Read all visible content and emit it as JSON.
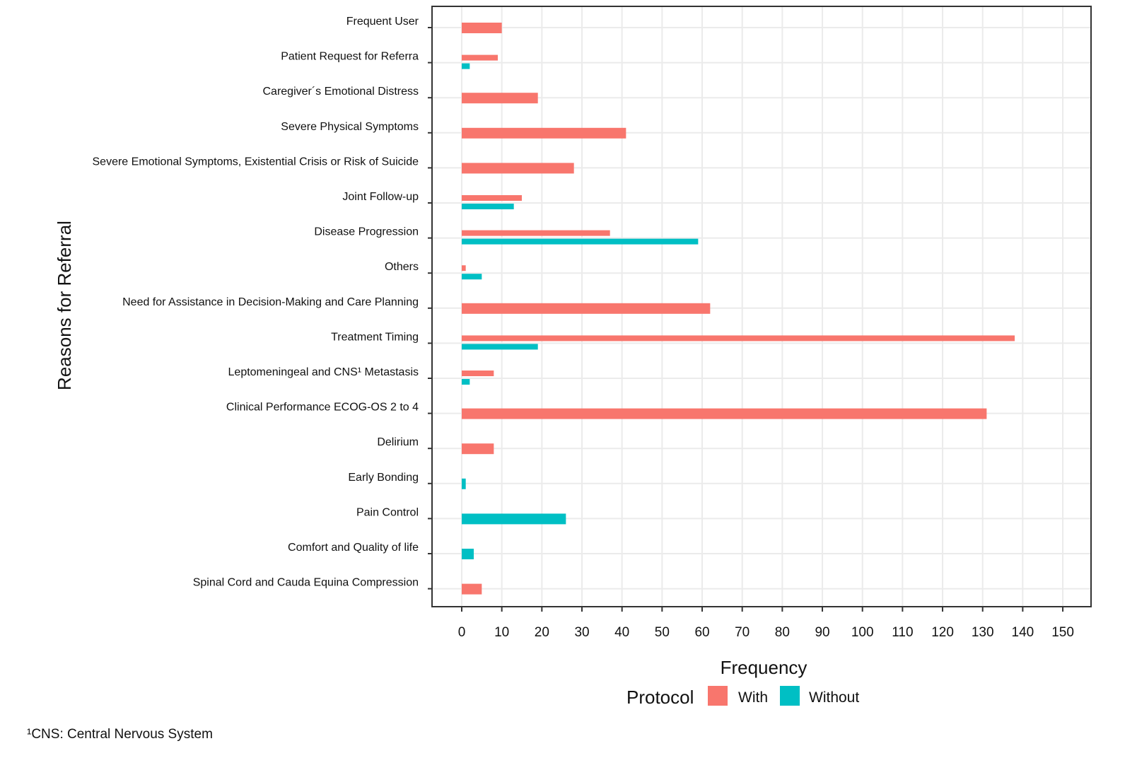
{
  "chart_data": {
    "type": "bar",
    "orientation": "horizontal",
    "title": "",
    "xlabel": "Frequency",
    "ylabel": "Reasons for Referral",
    "xlim": [
      0,
      150
    ],
    "xticks": [
      0,
      10,
      20,
      30,
      40,
      50,
      60,
      70,
      80,
      90,
      100,
      110,
      120,
      130,
      140,
      150
    ],
    "grid": true,
    "legend": {
      "title": "Protocol",
      "position": "bottom"
    },
    "categories": [
      "Frequent User",
      "Patient Request for Referra",
      "Caregiver´s Emotional Distress",
      "Severe Physical Symptoms",
      "Severe Emotional Symptoms, Existential Crisis or Risk of Suicide",
      "Joint Follow-up",
      "Disease Progression",
      "Others",
      "Need for Assistance in Decision-Making and Care Planning",
      "Treatment Timing",
      "Leptomeningeal and CNS¹ Metastasis",
      "Clinical Performance ECOG-OS 2 to 4",
      "Delirium",
      "Early Bonding",
      "Pain Control",
      "Comfort and Quality of life",
      "Spinal Cord and Cauda Equina Compression"
    ],
    "series": [
      {
        "name": "With",
        "color": "#F8766D",
        "values": [
          10,
          9,
          19,
          41,
          28,
          15,
          37,
          1,
          62,
          138,
          8,
          131,
          8,
          null,
          null,
          null,
          5
        ]
      },
      {
        "name": "Without",
        "color": "#00BFC4",
        "values": [
          null,
          2,
          null,
          null,
          null,
          13,
          59,
          5,
          null,
          19,
          2,
          null,
          null,
          1,
          26,
          3,
          null
        ]
      }
    ],
    "footnote": "¹CNS: Central Nervous System"
  }
}
